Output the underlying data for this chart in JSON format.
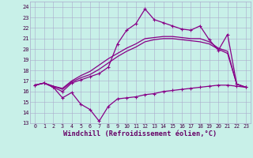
{
  "title": "Windchill (Refroidissement éolien,°C)",
  "bg_color": "#c8f0e8",
  "line_color": "#880088",
  "grid_color": "#aaaacc",
  "x_labels": [
    "0",
    "1",
    "2",
    "3",
    "4",
    "5",
    "6",
    "7",
    "8",
    "9",
    "10",
    "11",
    "12",
    "13",
    "14",
    "15",
    "16",
    "17",
    "18",
    "19",
    "20",
    "21",
    "22",
    "23"
  ],
  "yticks": [
    13,
    14,
    15,
    16,
    17,
    18,
    19,
    20,
    21,
    22,
    23,
    24
  ],
  "hours": [
    0,
    1,
    2,
    3,
    4,
    5,
    6,
    7,
    8,
    9,
    10,
    11,
    12,
    13,
    14,
    15,
    16,
    17,
    18,
    19,
    20,
    21,
    22,
    23
  ],
  "line_zigzag": [
    16.6,
    16.8,
    16.4,
    15.4,
    15.9,
    14.8,
    14.3,
    13.2,
    14.6,
    15.3,
    15.4,
    15.5,
    15.7,
    15.8,
    16.0,
    16.1,
    16.2,
    16.3,
    16.4,
    16.5,
    16.6,
    16.6,
    16.5,
    16.4
  ],
  "line_peak": [
    16.6,
    16.8,
    16.4,
    16.0,
    16.8,
    17.1,
    17.4,
    17.7,
    18.3,
    20.5,
    21.8,
    22.4,
    23.8,
    22.8,
    22.5,
    22.2,
    21.9,
    21.8,
    22.2,
    20.9,
    19.9,
    21.4,
    16.7,
    16.4
  ],
  "line_smooth1": [
    16.6,
    16.8,
    16.5,
    16.3,
    17.0,
    17.5,
    17.9,
    18.5,
    19.1,
    19.6,
    20.1,
    20.5,
    21.0,
    21.1,
    21.2,
    21.2,
    21.1,
    21.0,
    21.0,
    20.7,
    20.1,
    19.8,
    16.7,
    16.4
  ],
  "line_smooth2": [
    16.6,
    16.8,
    16.5,
    16.2,
    16.9,
    17.3,
    17.6,
    18.1,
    18.7,
    19.3,
    19.8,
    20.2,
    20.7,
    20.9,
    21.0,
    21.0,
    20.9,
    20.8,
    20.7,
    20.5,
    20.0,
    19.6,
    16.7,
    16.4
  ]
}
